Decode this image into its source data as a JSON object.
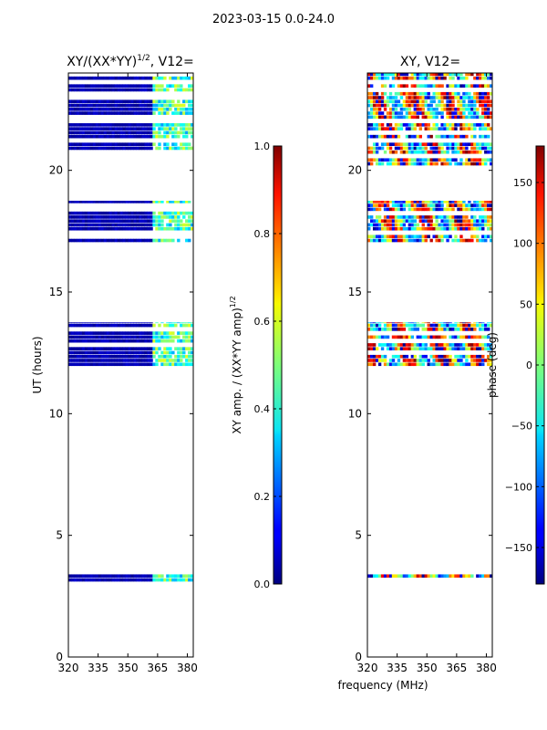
{
  "suptitle": "2023-03-15 0.0-24.0",
  "chart_data": [
    {
      "type": "heatmap",
      "title": "XY/(XX*YY)$^{1/2}$, V12=",
      "title_main": "XY/(XX*YY)",
      "title_sup": "1/2",
      "title_tail": ", V12=",
      "ylabel": "UT (hours)",
      "xlabel": "",
      "xlim": [
        320,
        383
      ],
      "ylim": [
        0,
        24
      ],
      "xticks": [
        320,
        335,
        350,
        365,
        380
      ],
      "yticks": [
        0,
        5,
        10,
        15,
        20
      ],
      "data_bands_ut": [
        [
          3.1,
          3.4
        ],
        [
          11.8,
          13.75
        ],
        [
          17.05,
          18.75
        ],
        [
          20.2,
          24.0
        ]
      ],
      "active_band_mhz": [
        362,
        382
      ],
      "colorbar": {
        "label": "XY amp. / (XX*YY amp)$^{1/2}$",
        "label_main": "XY amp. / (XX*YY amp)",
        "label_sup": "1/2",
        "range": [
          0.0,
          1.0
        ],
        "ticks": [
          "0.0",
          "0.2",
          "0.4",
          "0.6",
          "0.8",
          "1.0"
        ],
        "tick_values": [
          0.0,
          0.2,
          0.4,
          0.6,
          0.8,
          1.0
        ]
      }
    },
    {
      "type": "heatmap",
      "title": "XY, V12=",
      "ylabel": "",
      "xlabel": "frequency (MHz)",
      "xlim": [
        320,
        383
      ],
      "ylim": [
        0,
        24
      ],
      "xticks": [
        320,
        335,
        350,
        365,
        380
      ],
      "yticks": [
        0,
        5,
        10,
        15,
        20
      ],
      "data_bands_ut": [
        [
          3.1,
          3.4
        ],
        [
          11.8,
          13.75
        ],
        [
          17.05,
          18.75
        ],
        [
          20.2,
          24.0
        ]
      ],
      "colorbar": {
        "label": "phase (deg)",
        "range": [
          -180,
          180
        ],
        "ticks": [
          "−150",
          "−100",
          "−50",
          "0",
          "50",
          "100",
          "150"
        ],
        "tick_values": [
          -150,
          -100,
          -50,
          0,
          50,
          100,
          150
        ]
      }
    }
  ]
}
